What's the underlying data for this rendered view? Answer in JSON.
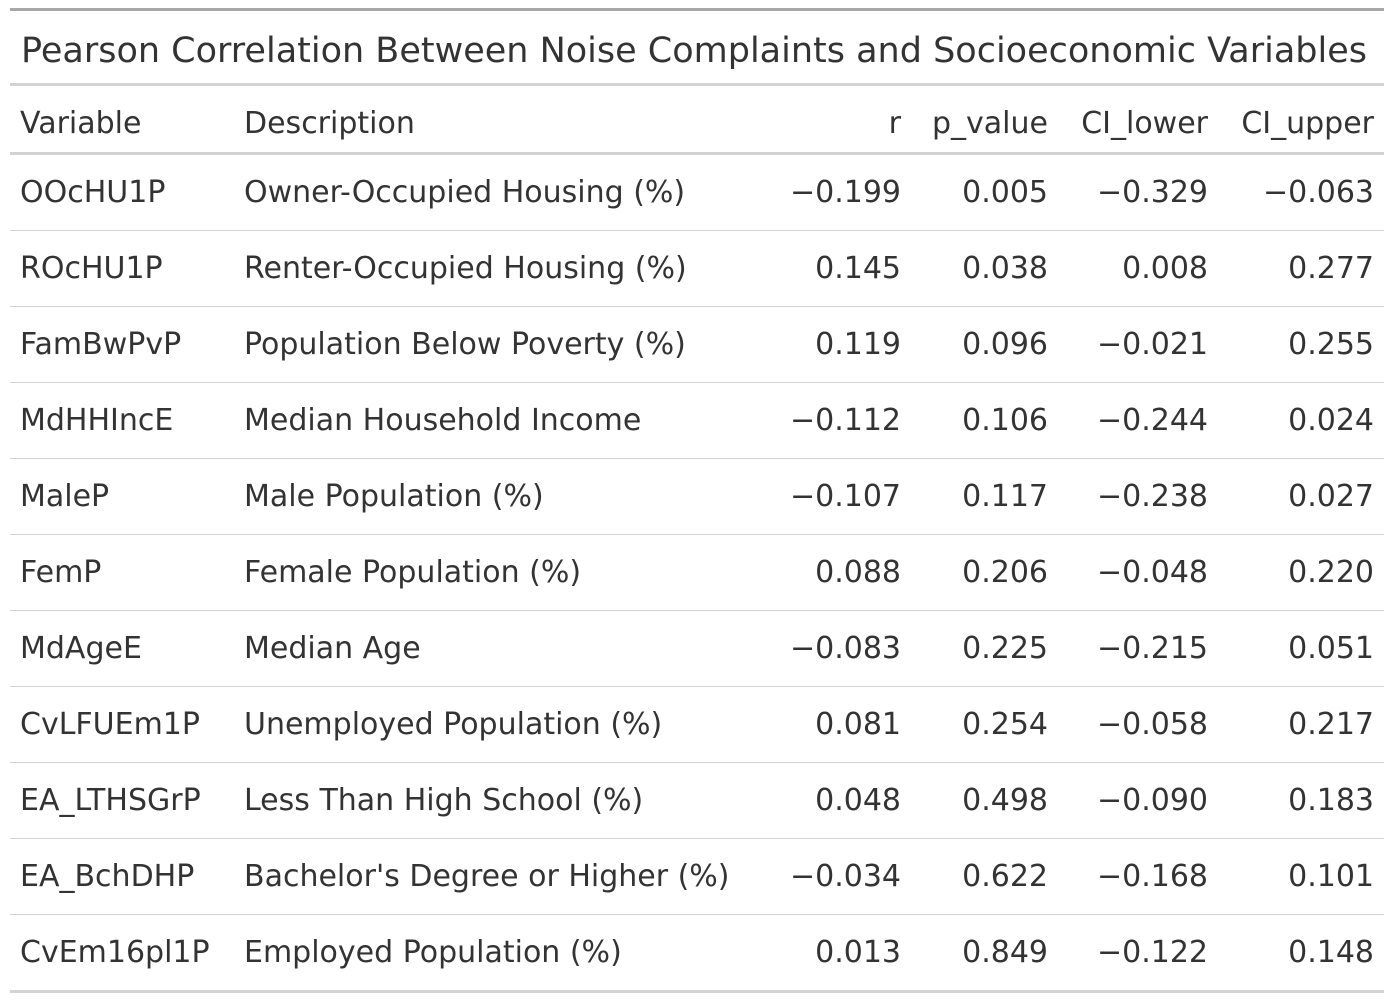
{
  "table": {
    "title": "Pearson Correlation Between Noise Complaints and Socioeconomic Variables",
    "columns": [
      "Variable",
      "Description",
      "r",
      "p_value",
      "CI_lower",
      "CI_upper"
    ],
    "rows": [
      [
        "OOcHU1P",
        "Owner-Occupied Housing (%)",
        "−0.199",
        "0.005",
        "−0.329",
        "−0.063"
      ],
      [
        "ROcHU1P",
        "Renter-Occupied Housing (%)",
        "0.145",
        "0.038",
        "0.008",
        "0.277"
      ],
      [
        "FamBwPvP",
        "Population Below Poverty (%)",
        "0.119",
        "0.096",
        "−0.021",
        "0.255"
      ],
      [
        "MdHHIncE",
        "Median Household Income",
        "−0.112",
        "0.106",
        "−0.244",
        "0.024"
      ],
      [
        "MaleP",
        "Male Population (%)",
        "−0.107",
        "0.117",
        "−0.238",
        "0.027"
      ],
      [
        "FemP",
        "Female Population (%)",
        "0.088",
        "0.206",
        "−0.048",
        "0.220"
      ],
      [
        "MdAgeE",
        "Median Age",
        "−0.083",
        "0.225",
        "−0.215",
        "0.051"
      ],
      [
        "CvLFUEm1P",
        "Unemployed Population (%)",
        "0.081",
        "0.254",
        "−0.058",
        "0.217"
      ],
      [
        "EA_LTHSGrP",
        "Less Than High School (%)",
        "0.048",
        "0.498",
        "−0.090",
        "0.183"
      ],
      [
        "EA_BchDHP",
        "Bachelor's Degree or Higher (%)",
        "−0.034",
        "0.622",
        "−0.168",
        "0.101"
      ],
      [
        "CvEm16pl1P",
        "Employed Population (%)",
        "0.013",
        "0.849",
        "−0.122",
        "0.148"
      ]
    ]
  }
}
